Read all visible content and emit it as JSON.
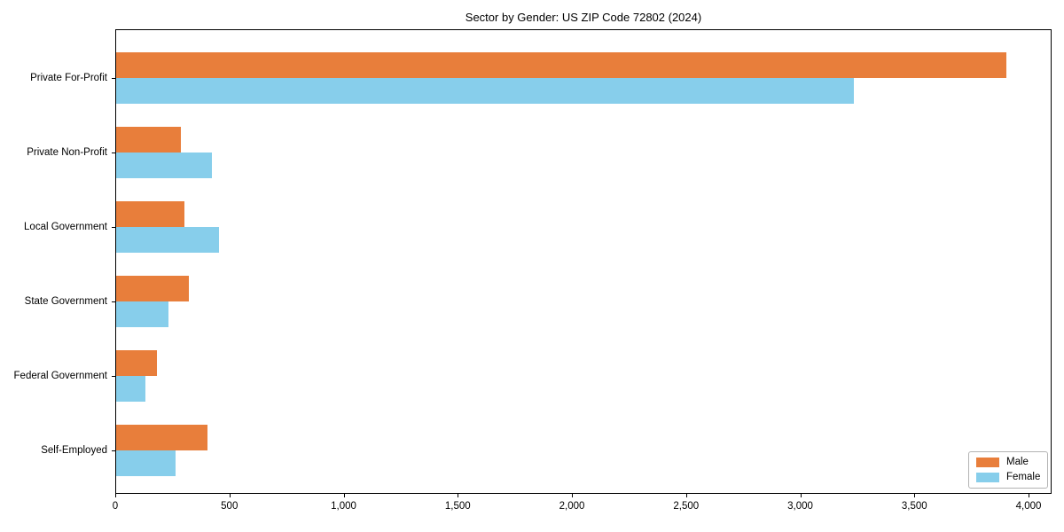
{
  "page": {
    "title": "Sector by Gender: US ZIP Code 72802 (2024)"
  },
  "chart_data": {
    "type": "bar",
    "orientation": "horizontal",
    "title": "Sector by Gender: US ZIP Code 72802 (2024)",
    "categories": [
      "Private For-Profit",
      "Private Non-Profit",
      "Local Government",
      "State Government",
      "Federal Government",
      "Self-Employed"
    ],
    "series": [
      {
        "name": "Male",
        "color": "#e87e3b",
        "values": [
          3900,
          285,
          300,
          320,
          180,
          400
        ]
      },
      {
        "name": "Female",
        "color": "#87ceeb",
        "values": [
          3230,
          420,
          450,
          230,
          130,
          260
        ]
      }
    ],
    "xlabel": "",
    "ylabel": "",
    "xlim": [
      0,
      4100
    ],
    "x_ticks": [
      0,
      500,
      1000,
      1500,
      2000,
      2500,
      3000,
      3500,
      4000
    ],
    "x_tick_labels": [
      "0",
      "500",
      "1,000",
      "1,500",
      "2,000",
      "2,500",
      "3,000",
      "3,500",
      "4,000"
    ],
    "grid": false,
    "legend": {
      "position": "lower right",
      "entries": [
        "Male",
        "Female"
      ]
    }
  }
}
